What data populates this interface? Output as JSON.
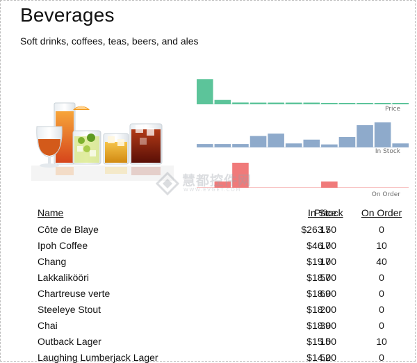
{
  "category": {
    "title": "Beverages",
    "description": "Soft drinks, coffees, teas, beers, and ales"
  },
  "strips": {
    "price": {
      "label": "Price",
      "color": "#5cc49a",
      "values": [
        263.5,
        46,
        19,
        18,
        18,
        18,
        18,
        15,
        14,
        14,
        14,
        4.5
      ]
    },
    "in_stock": {
      "label": "In Stock",
      "color": "#8eaacb",
      "values": [
        17,
        17,
        17,
        57,
        69,
        20,
        39,
        15,
        52,
        111,
        125,
        20
      ]
    },
    "on_order": {
      "label": "On Order",
      "color": "#f07a7a",
      "values": [
        0,
        10,
        40,
        0,
        0,
        0,
        0,
        10,
        0,
        0,
        0,
        0
      ]
    }
  },
  "watermark": {
    "cn": "慧都控件网",
    "en": "WWW.EVGET.COM"
  },
  "table": {
    "headers": {
      "name": "Name",
      "price": "Price",
      "in_stock": "In Stock",
      "on_order": "On Order"
    },
    "rows": [
      {
        "name": "Côte de Blaye",
        "price": "$263.50",
        "in_stock": "17",
        "on_order": "0"
      },
      {
        "name": "Ipoh Coffee",
        "price": "$46.00",
        "in_stock": "17",
        "on_order": "10"
      },
      {
        "name": "Chang",
        "price": "$19.00",
        "in_stock": "17",
        "on_order": "40"
      },
      {
        "name": "Lakkalikööri",
        "price": "$18.00",
        "in_stock": "57",
        "on_order": "0"
      },
      {
        "name": "Chartreuse verte",
        "price": "$18.00",
        "in_stock": "69",
        "on_order": "0"
      },
      {
        "name": "Steeleye Stout",
        "price": "$18.00",
        "in_stock": "20",
        "on_order": "0"
      },
      {
        "name": "Chai",
        "price": "$18.00",
        "in_stock": "39",
        "on_order": "0"
      },
      {
        "name": "Outback Lager",
        "price": "$15.00",
        "in_stock": "15",
        "on_order": "10"
      },
      {
        "name": "Laughing Lumberjack Lager",
        "price": "$14.00",
        "in_stock": "52",
        "on_order": "0"
      }
    ]
  }
}
